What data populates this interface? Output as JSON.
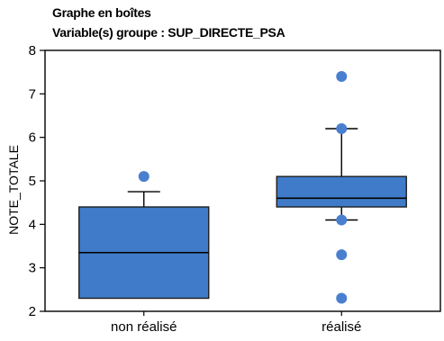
{
  "chart_data": {
    "type": "box",
    "title": "Graphe en boîtes",
    "subtitle": "Variable(s) groupe : SUP_DIRECTE_PSA",
    "xlabel": "",
    "ylabel": "NOTE_TOTALE",
    "ylim": [
      2,
      8
    ],
    "yticks": [
      "2",
      "3",
      "4",
      "5",
      "6",
      "7",
      "8"
    ],
    "grid": false,
    "colors": {
      "box_fill": "#3f7bc8",
      "outlier": "#4a7fd0",
      "line": "#000000"
    },
    "categories": [
      "non réalisé",
      "réalisé"
    ],
    "boxes": [
      {
        "category": "non réalisé",
        "whisker_low": 2.3,
        "q1": 2.3,
        "median": 3.35,
        "q3": 4.4,
        "whisker_high": 4.75,
        "outliers": [
          5.1
        ]
      },
      {
        "category": "réalisé",
        "whisker_low": 4.1,
        "q1": 4.4,
        "median": 4.6,
        "q3": 5.1,
        "whisker_high": 6.2,
        "outliers": [
          7.4,
          6.2,
          4.1,
          3.3,
          2.3
        ]
      }
    ]
  }
}
